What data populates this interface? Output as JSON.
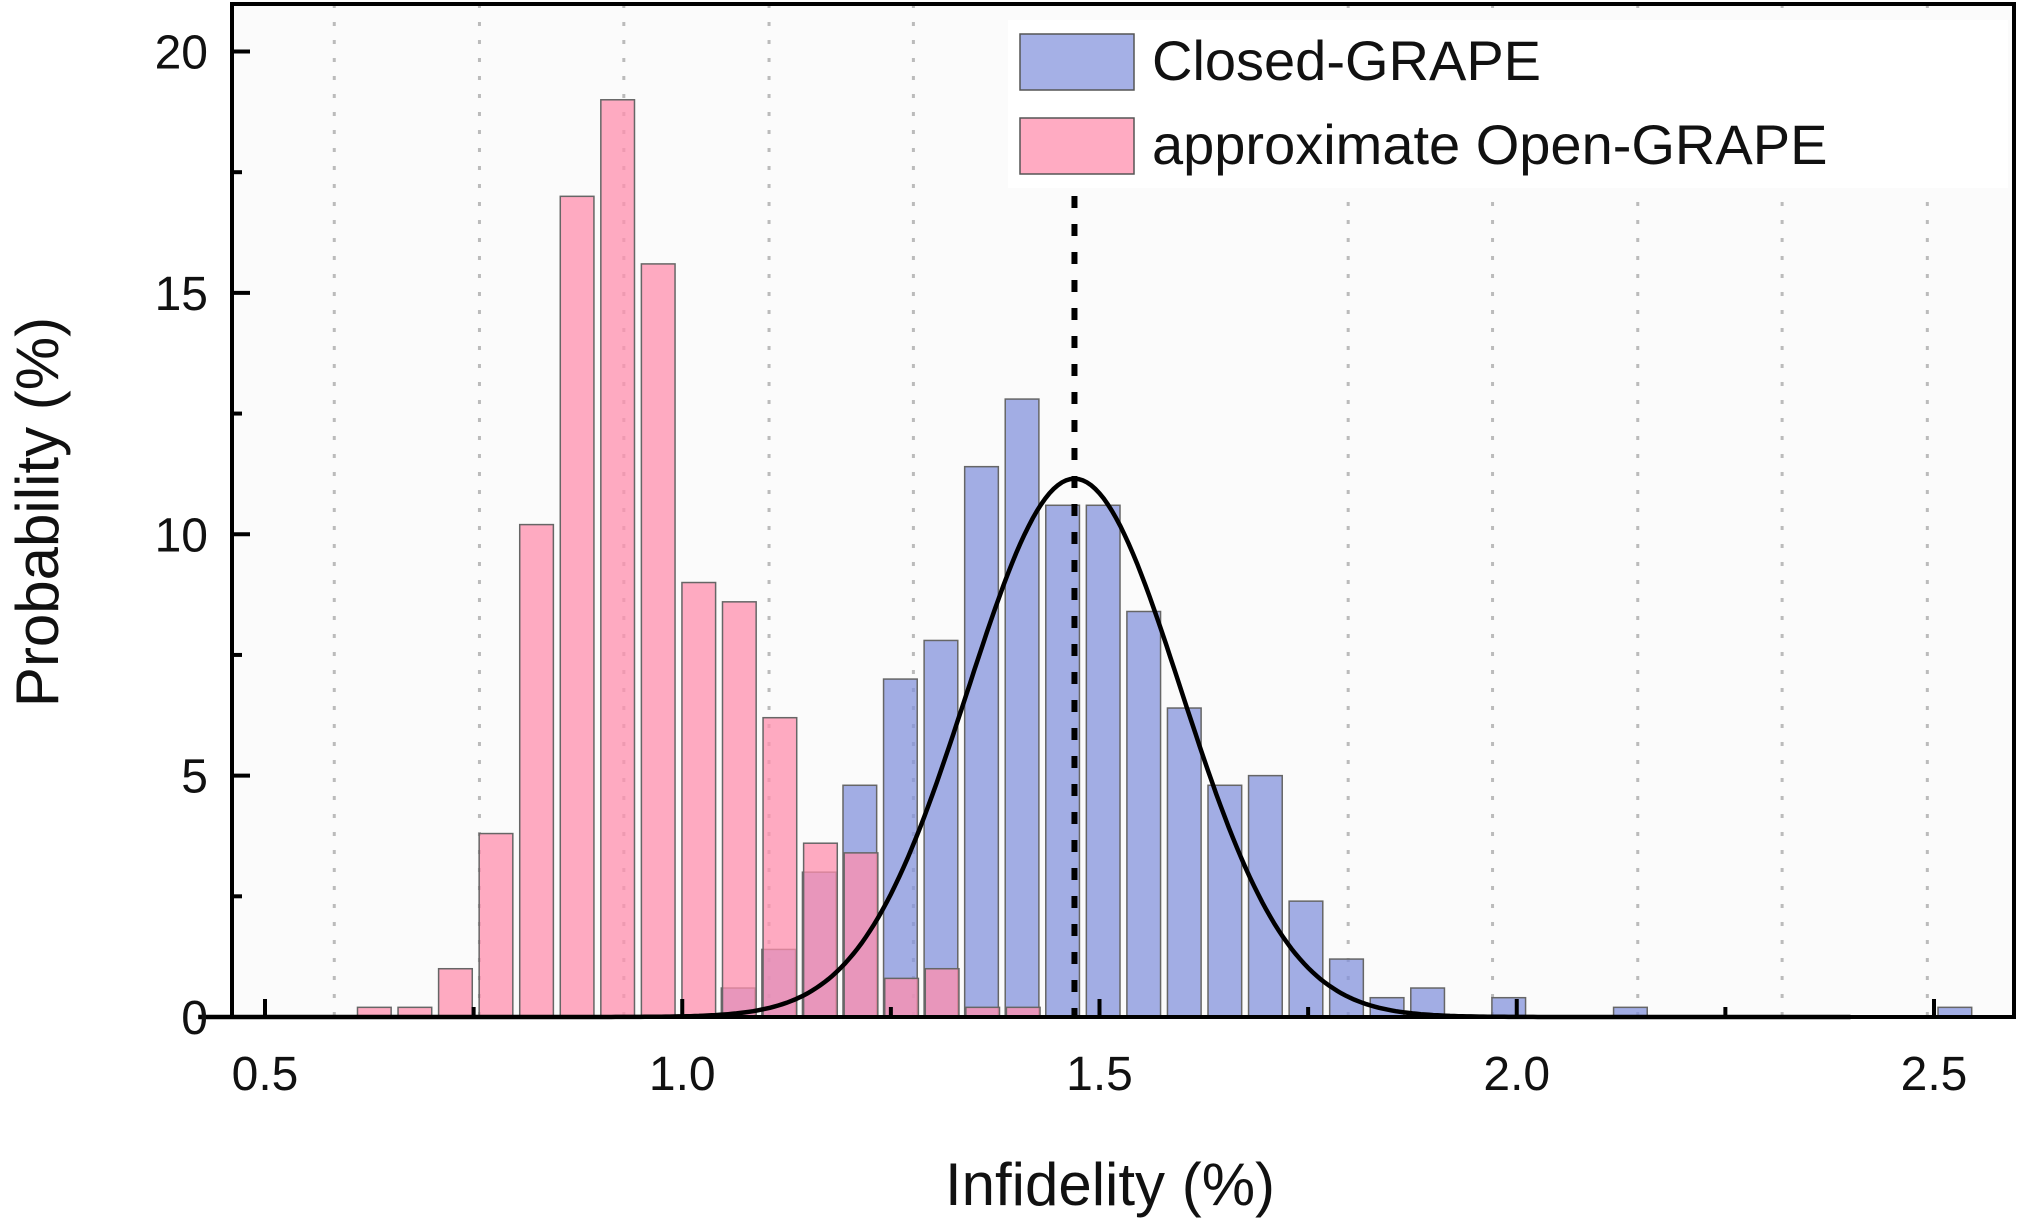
{
  "chart_data": {
    "type": "bar",
    "title": "",
    "xlabel": "Infidelity (%)",
    "ylabel": "Probability (%)",
    "xlim": [
      0.42,
      2.61
    ],
    "ylim": [
      0,
      20.5
    ],
    "xticks": [
      "0.5",
      "1.0",
      "1.5",
      "2.0",
      "2.5"
    ],
    "xtick_values": [
      0.5,
      1.0,
      1.5,
      2.0,
      2.5
    ],
    "yticks": [
      "0",
      "5",
      "10",
      "15",
      "20"
    ],
    "ytick_values": [
      0,
      5,
      10,
      15,
      20
    ],
    "bin_width": 0.0486,
    "grid": "vertical dotted",
    "grid_x": [
      0.583,
      0.757,
      0.93,
      1.104,
      1.277,
      1.798,
      1.971,
      2.145,
      2.318,
      2.492
    ],
    "legend_position": "top-right",
    "series": [
      {
        "name": "Closed-GRAPE",
        "color": "#7f8fdb",
        "x0": 1.067,
        "values": [
          0.6,
          1.4,
          3.0,
          4.8,
          7.0,
          7.8,
          11.4,
          12.8,
          10.6,
          10.6,
          8.4,
          6.4,
          4.8,
          5.0,
          2.4,
          1.2,
          0.4,
          0.6,
          0,
          0.4,
          0,
          0,
          0.2,
          0,
          0,
          0,
          0,
          0,
          0,
          0,
          0.2
        ]
      },
      {
        "name": "approximate Open-GRAPE",
        "color": "#ff8fae",
        "x0": 0.631,
        "values": [
          0.2,
          0.2,
          1.0,
          3.8,
          10.2,
          17.0,
          19.0,
          15.6,
          9.0,
          8.6,
          6.2,
          3.6,
          3.4,
          0.8,
          1.0,
          0.2,
          0.2
        ]
      }
    ],
    "fit": {
      "type": "gaussian",
      "mean": 1.47,
      "sigma": 0.128,
      "peak": 11.15,
      "color": "#000000"
    },
    "mean_line": {
      "x": 1.47,
      "style": "dotted",
      "color": "#000000"
    }
  }
}
